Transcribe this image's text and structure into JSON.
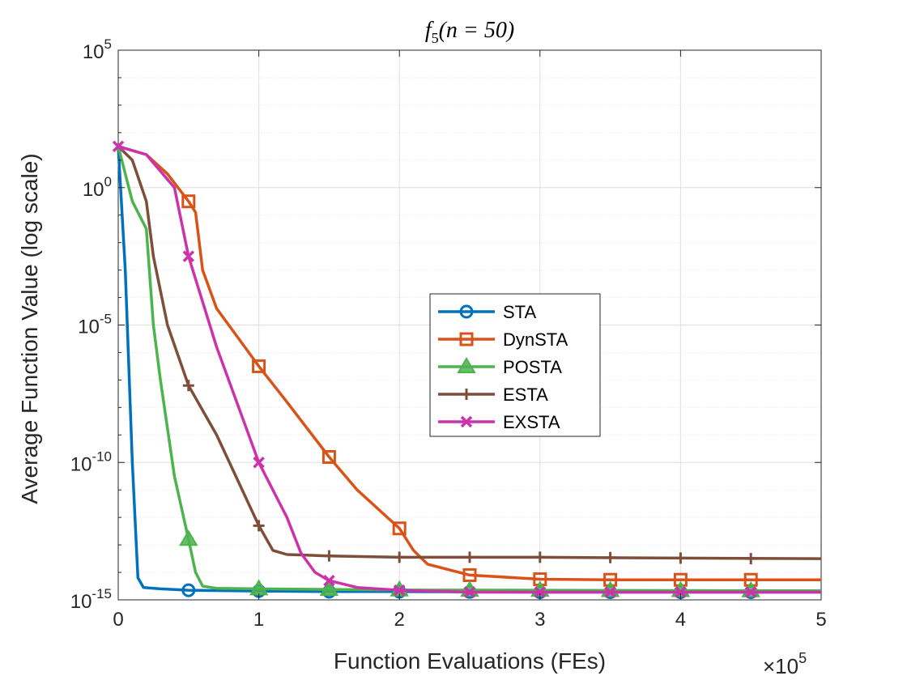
{
  "chart_data": {
    "type": "line",
    "title": "f5(n = 50)",
    "title_parts": {
      "f": "f",
      "sub": "5",
      "args": "(n = 50)"
    },
    "xlabel": "Function Evaluations (FEs)",
    "ylabel": "Average Function Value (log scale)",
    "x_multiplier_label": {
      "base": "×10",
      "exp": "5"
    },
    "xlim": [
      0,
      5
    ],
    "ylim_log10": [
      -15,
      5
    ],
    "x_ticks": [
      0,
      1,
      2,
      3,
      4,
      5
    ],
    "y_ticks": [
      {
        "exp": -15,
        "base": "10",
        "label": "-15"
      },
      {
        "exp": -10,
        "base": "10",
        "label": "-10"
      },
      {
        "exp": -5,
        "base": "10",
        "label": "-5"
      },
      {
        "exp": 0,
        "base": "10",
        "label": "0"
      },
      {
        "exp": 5,
        "base": "10",
        "label": "5"
      }
    ],
    "grid": true,
    "legend_position": "center-right",
    "series": [
      {
        "name": "STA",
        "color": "#0072BD",
        "marker": "circle",
        "points": [
          [
            0,
            1.5
          ],
          [
            0.05,
            -3
          ],
          [
            0.1,
            -10
          ],
          [
            0.14,
            -14.2
          ],
          [
            0.18,
            -14.55
          ],
          [
            0.3,
            -14.6
          ],
          [
            0.5,
            -14.65
          ],
          [
            1,
            -14.68
          ],
          [
            1.5,
            -14.7
          ],
          [
            2,
            -14.7
          ],
          [
            3,
            -14.72
          ],
          [
            4,
            -14.72
          ],
          [
            5,
            -14.72
          ]
        ],
        "marker_points": [
          [
            0.5,
            -14.65
          ],
          [
            1,
            -14.68
          ],
          [
            1.5,
            -14.7
          ],
          [
            2,
            -14.7
          ],
          [
            2.5,
            -14.71
          ],
          [
            3,
            -14.72
          ],
          [
            3.5,
            -14.72
          ],
          [
            4,
            -14.72
          ],
          [
            4.5,
            -14.72
          ]
        ]
      },
      {
        "name": "DynSTA",
        "color": "#D95319",
        "marker": "square",
        "points": [
          [
            0,
            1.5
          ],
          [
            0.2,
            1.2
          ],
          [
            0.35,
            0.5
          ],
          [
            0.5,
            -0.5
          ],
          [
            0.55,
            -0.9
          ],
          [
            0.6,
            -3
          ],
          [
            0.7,
            -4.4
          ],
          [
            0.8,
            -5.1
          ],
          [
            1,
            -6.5
          ],
          [
            1.2,
            -7.8
          ],
          [
            1.5,
            -9.8
          ],
          [
            1.7,
            -11
          ],
          [
            2,
            -12.4
          ],
          [
            2.1,
            -13.2
          ],
          [
            2.2,
            -13.7
          ],
          [
            2.5,
            -14.1
          ],
          [
            3,
            -14.25
          ],
          [
            3.5,
            -14.27
          ],
          [
            4,
            -14.27
          ],
          [
            5,
            -14.27
          ]
        ],
        "marker_points": [
          [
            0.5,
            -0.5
          ],
          [
            1,
            -6.5
          ],
          [
            1.5,
            -9.8
          ],
          [
            2,
            -12.4
          ],
          [
            2.5,
            -14.1
          ],
          [
            3,
            -14.25
          ],
          [
            3.5,
            -14.27
          ],
          [
            4,
            -14.27
          ],
          [
            4.5,
            -14.27
          ]
        ]
      },
      {
        "name": "POSTA",
        "color": "#4DB34D",
        "marker": "triangle",
        "points": [
          [
            0,
            1.5
          ],
          [
            0.1,
            -0.5
          ],
          [
            0.2,
            -1.5
          ],
          [
            0.25,
            -5
          ],
          [
            0.3,
            -7
          ],
          [
            0.4,
            -10.5
          ],
          [
            0.5,
            -12.8
          ],
          [
            0.55,
            -14.0
          ],
          [
            0.6,
            -14.5
          ],
          [
            0.7,
            -14.58
          ],
          [
            1,
            -14.6
          ],
          [
            1.5,
            -14.62
          ],
          [
            2,
            -14.64
          ],
          [
            3,
            -14.65
          ],
          [
            4,
            -14.66
          ],
          [
            5,
            -14.67
          ]
        ],
        "marker_points": [
          [
            0.5,
            -12.8
          ],
          [
            1,
            -14.6
          ],
          [
            1.5,
            -14.62
          ],
          [
            2,
            -14.64
          ],
          [
            2.5,
            -14.65
          ],
          [
            3,
            -14.65
          ],
          [
            3.5,
            -14.66
          ],
          [
            4,
            -14.66
          ],
          [
            4.5,
            -14.67
          ]
        ]
      },
      {
        "name": "ESTA",
        "color": "#7E4E3B",
        "marker": "plus",
        "points": [
          [
            0,
            1.5
          ],
          [
            0.1,
            1
          ],
          [
            0.2,
            -0.5
          ],
          [
            0.25,
            -2.5
          ],
          [
            0.35,
            -5
          ],
          [
            0.5,
            -7.2
          ],
          [
            0.7,
            -9
          ],
          [
            1,
            -12.3
          ],
          [
            1.1,
            -13.2
          ],
          [
            1.2,
            -13.35
          ],
          [
            1.5,
            -13.4
          ],
          [
            2,
            -13.45
          ],
          [
            3,
            -13.45
          ],
          [
            4,
            -13.48
          ],
          [
            5,
            -13.5
          ]
        ],
        "marker_points": [
          [
            0.5,
            -7.2
          ],
          [
            1,
            -12.3
          ],
          [
            1.5,
            -13.4
          ],
          [
            2,
            -13.45
          ],
          [
            2.5,
            -13.45
          ],
          [
            3,
            -13.45
          ],
          [
            3.5,
            -13.46
          ],
          [
            4,
            -13.48
          ],
          [
            4.5,
            -13.5
          ]
        ]
      },
      {
        "name": "EXSTA",
        "color": "#CC33AA",
        "marker": "x",
        "points": [
          [
            0,
            1.5
          ],
          [
            0.2,
            1.2
          ],
          [
            0.4,
            0
          ],
          [
            0.5,
            -2.5
          ],
          [
            0.7,
            -5.8
          ],
          [
            1,
            -10
          ],
          [
            1.2,
            -12
          ],
          [
            1.3,
            -13.3
          ],
          [
            1.4,
            -14
          ],
          [
            1.5,
            -14.3
          ],
          [
            1.7,
            -14.55
          ],
          [
            2,
            -14.65
          ],
          [
            2.5,
            -14.72
          ],
          [
            3,
            -14.72
          ],
          [
            4,
            -14.72
          ],
          [
            5,
            -14.72
          ]
        ],
        "marker_points": [
          [
            0,
            1.5
          ],
          [
            0.5,
            -2.5
          ],
          [
            1,
            -10
          ],
          [
            1.5,
            -14.3
          ],
          [
            2,
            -14.65
          ],
          [
            2.5,
            -14.72
          ],
          [
            3,
            -14.72
          ],
          [
            3.5,
            -14.72
          ],
          [
            4,
            -14.72
          ],
          [
            4.5,
            -14.72
          ]
        ]
      }
    ]
  }
}
